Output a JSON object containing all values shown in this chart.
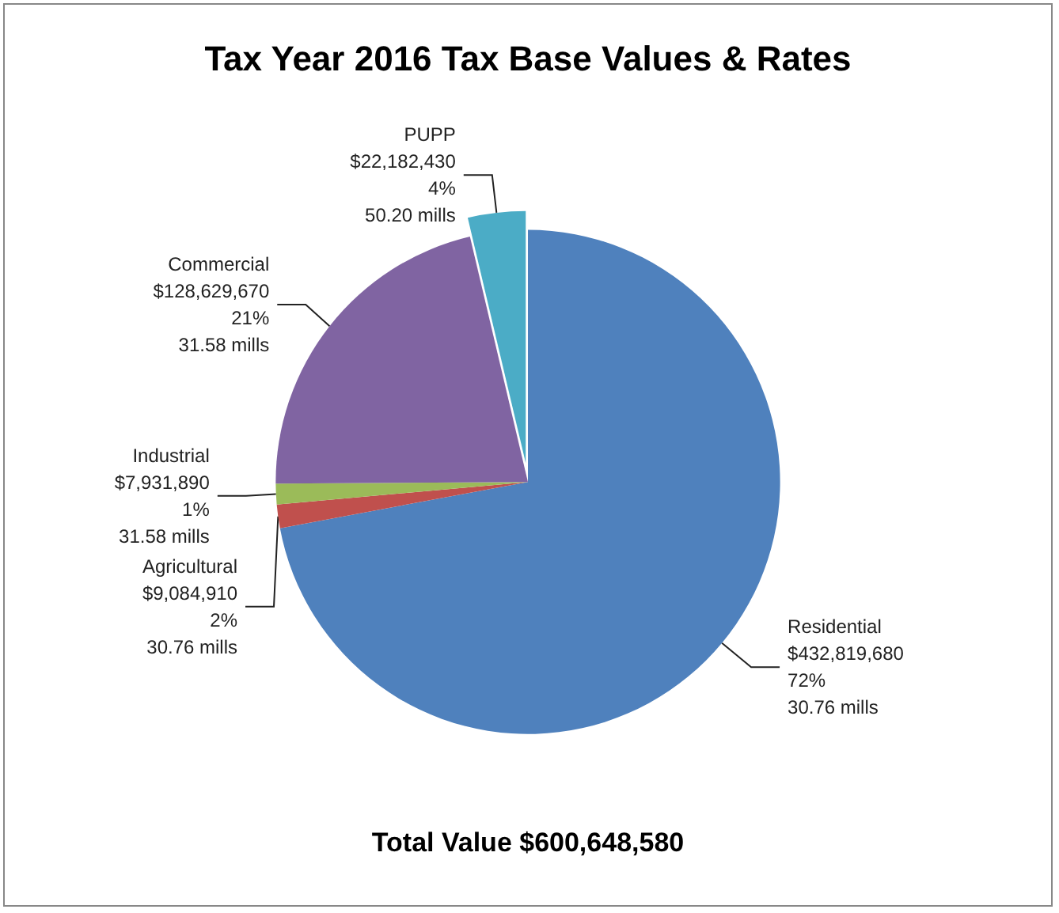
{
  "chart_data": {
    "type": "pie",
    "title": "Tax Year 2016 Tax Base Values & Rates",
    "categories": [
      "Residential",
      "Agricultural",
      "Industrial",
      "Commercial",
      "PUPP"
    ],
    "values": [
      432819680,
      9084910,
      7931890,
      128629670,
      22182430
    ],
    "colors": [
      "#4f81bd",
      "#c0504d",
      "#9bbb59",
      "#8064a2",
      "#4bacc6"
    ],
    "value_labels": [
      "$432,819,680\n72%\n30.76 mills",
      "$9,084,910\n2%\n30.76 mills",
      "$7,931,890\n1%\n31.58 mills",
      "$128,629,670\n21%\n31.58 mills",
      "$22,182,430\n4%\n50.20 mills"
    ],
    "annotations": [
      "Total Value $600,648,580"
    ],
    "legend": false
  }
}
